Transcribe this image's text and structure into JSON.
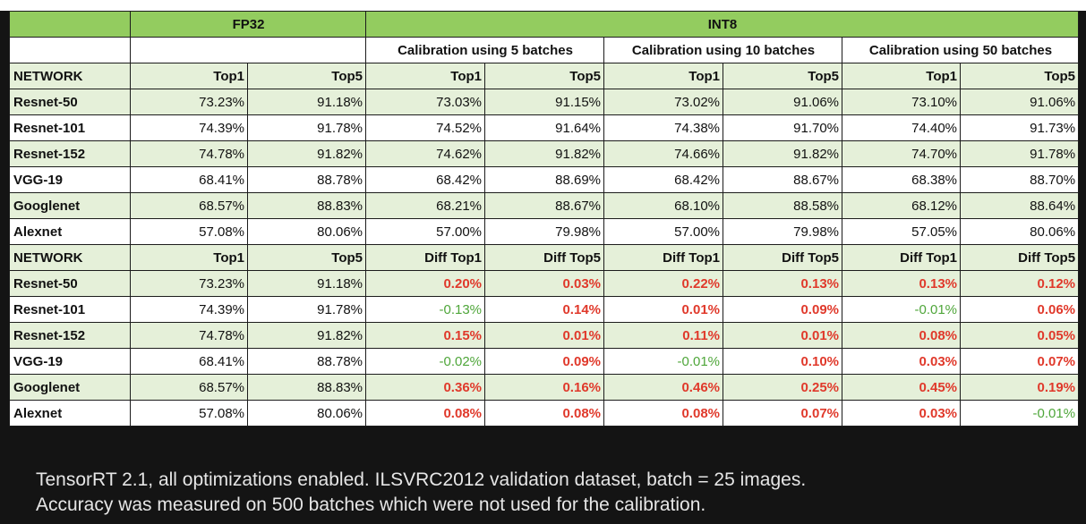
{
  "top_fragment": "",
  "header": {
    "fp32": "FP32",
    "int8": "INT8",
    "calib": [
      "Calibration using 5 batches",
      "Calibration using 10 batches",
      "Calibration using 50 batches"
    ]
  },
  "table1": {
    "columns": [
      "NETWORK",
      "Top1",
      "Top5",
      "Top1",
      "Top5",
      "Top1",
      "Top5",
      "Top1",
      "Top5"
    ],
    "rows": [
      [
        "Resnet-50",
        "73.23%",
        "91.18%",
        "73.03%",
        "91.15%",
        "73.02%",
        "91.06%",
        "73.10%",
        "91.06%"
      ],
      [
        "Resnet-101",
        "74.39%",
        "91.78%",
        "74.52%",
        "91.64%",
        "74.38%",
        "91.70%",
        "74.40%",
        "91.73%"
      ],
      [
        "Resnet-152",
        "74.78%",
        "91.82%",
        "74.62%",
        "91.82%",
        "74.66%",
        "91.82%",
        "74.70%",
        "91.78%"
      ],
      [
        "VGG-19",
        "68.41%",
        "88.78%",
        "68.42%",
        "88.69%",
        "68.42%",
        "88.67%",
        "68.38%",
        "88.70%"
      ],
      [
        "Googlenet",
        "68.57%",
        "88.83%",
        "68.21%",
        "88.67%",
        "68.10%",
        "88.58%",
        "68.12%",
        "88.64%"
      ],
      [
        "Alexnet",
        "57.08%",
        "80.06%",
        "57.00%",
        "79.98%",
        "57.00%",
        "79.98%",
        "57.05%",
        "80.06%"
      ]
    ]
  },
  "table2": {
    "columns": [
      "NETWORK",
      "Top1",
      "Top5",
      "Diff Top1",
      "Diff Top5",
      "Diff Top1",
      "Diff Top5",
      "Diff Top1",
      "Diff Top5"
    ],
    "rows": [
      [
        "Resnet-50",
        "73.23%",
        "91.18%",
        "0.20%",
        "0.03%",
        "0.22%",
        "0.13%",
        "0.13%",
        "0.12%"
      ],
      [
        "Resnet-101",
        "74.39%",
        "91.78%",
        "-0.13%",
        "0.14%",
        "0.01%",
        "0.09%",
        "-0.01%",
        "0.06%"
      ],
      [
        "Resnet-152",
        "74.78%",
        "91.82%",
        "0.15%",
        "0.01%",
        "0.11%",
        "0.01%",
        "0.08%",
        "0.05%"
      ],
      [
        "VGG-19",
        "68.41%",
        "88.78%",
        "-0.02%",
        "0.09%",
        "-0.01%",
        "0.10%",
        "0.03%",
        "0.07%"
      ],
      [
        "Googlenet",
        "68.57%",
        "88.83%",
        "0.36%",
        "0.16%",
        "0.46%",
        "0.25%",
        "0.45%",
        "0.19%"
      ],
      [
        "Alexnet",
        "57.08%",
        "80.06%",
        "0.08%",
        "0.08%",
        "0.08%",
        "0.07%",
        "0.03%",
        "-0.01%"
      ]
    ]
  },
  "footnote": {
    "line1": "TensorRT 2.1, all optimizations enabled. ILSVRC2012 validation dataset, batch = 25 images.",
    "line2": "Accuracy was measured on 500 batches which were not used for the calibration."
  },
  "colors": {
    "header_green": "#93cc5f",
    "row_green": "#e5f0d9",
    "positive_diff": "#e0392b",
    "negative_diff": "#4fa63a",
    "background": "#141414"
  }
}
